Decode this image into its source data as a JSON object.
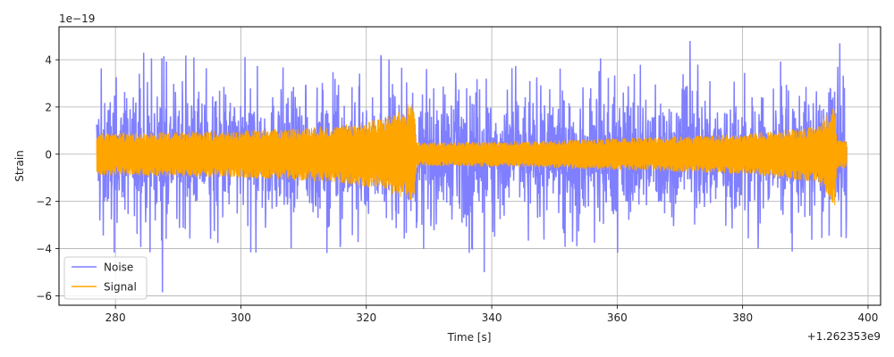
{
  "chart_data": {
    "type": "line",
    "title": "",
    "xlabel": "Time [s]",
    "ylabel": "Strain",
    "y_scale_label": "1e−19",
    "x_offset_label": "+1.262353e9",
    "xlim": [
      271.0,
      402.0
    ],
    "ylim": [
      -6.4,
      5.4
    ],
    "x_ticks": [
      280,
      300,
      320,
      340,
      360,
      380,
      400
    ],
    "y_ticks": [
      -6,
      -4,
      -2,
      0,
      2,
      4
    ],
    "x_tick_labels": [
      "280",
      "300",
      "320",
      "340",
      "360",
      "380",
      "400"
    ],
    "y_tick_labels": [
      "−6",
      "−4",
      "−2",
      "0",
      "2",
      "4"
    ],
    "grid": true,
    "legend": {
      "placement": "lower-left"
    },
    "series": [
      {
        "name": "Noise",
        "color": "#7f7fff",
        "x_range": [
          277.0,
          396.6
        ],
        "typical_amplitude": 2.1,
        "peak_max": 4.8,
        "peak_min": -5.8,
        "notable_extremes": [
          {
            "x": 287.5,
            "y": -5.85
          },
          {
            "x": 284.5,
            "y": 4.3
          },
          {
            "x": 338.8,
            "y": -5.0
          },
          {
            "x": 371.6,
            "y": 4.8
          },
          {
            "x": 395.5,
            "y": 4.7
          }
        ]
      },
      {
        "name": "Signal",
        "color": "#ffa500",
        "x_range": [
          277.0,
          396.6
        ],
        "envelope": [
          {
            "x": 277.0,
            "amp": 0.9
          },
          {
            "x": 300.0,
            "amp": 1.0
          },
          {
            "x": 315.0,
            "amp": 1.2
          },
          {
            "x": 322.0,
            "amp": 1.5
          },
          {
            "x": 326.0,
            "amp": 1.9
          },
          {
            "x": 327.5,
            "amp": 2.5
          },
          {
            "x": 328.0,
            "amp": 0.5
          },
          {
            "x": 345.0,
            "amp": 0.55
          },
          {
            "x": 380.0,
            "amp": 0.85
          },
          {
            "x": 392.0,
            "amp": 1.2
          },
          {
            "x": 394.7,
            "amp": 2.2
          },
          {
            "x": 395.0,
            "amp": 0.6
          },
          {
            "x": 396.6,
            "amp": 0.6
          }
        ]
      }
    ]
  }
}
